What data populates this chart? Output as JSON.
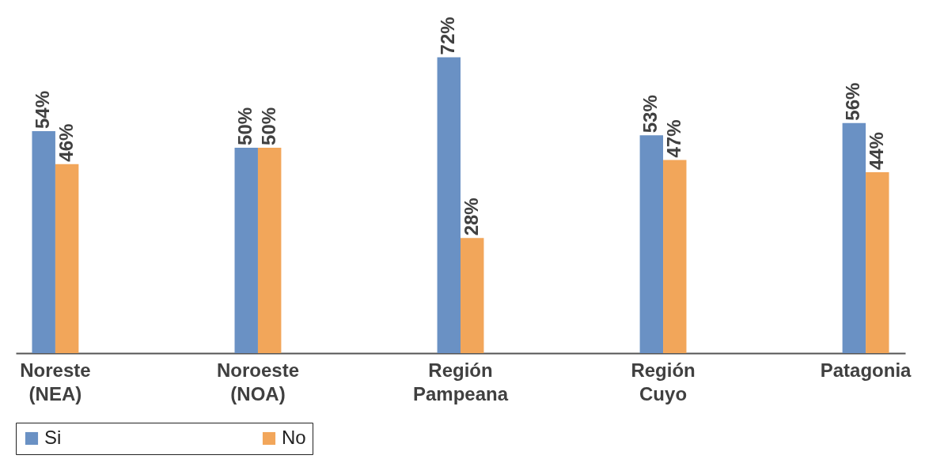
{
  "chart_data": {
    "type": "bar",
    "categories": [
      "Noreste (NEA)",
      "Noroeste (NOA)",
      "Región Pampeana",
      "Región Cuyo",
      "Patagonia"
    ],
    "series": [
      {
        "name": "Si",
        "color": "#6a91c4",
        "values": [
          54,
          50,
          72,
          53,
          56
        ],
        "value_labels": [
          "54%",
          "50%",
          "72%",
          "53%",
          "56%"
        ]
      },
      {
        "name": "No",
        "color": "#f2a65a",
        "values": [
          46,
          50,
          28,
          47,
          44
        ],
        "value_labels": [
          "46%",
          "50%",
          "28%",
          "47%",
          "44%"
        ]
      }
    ],
    "legend": "bottom",
    "grid": false
  }
}
